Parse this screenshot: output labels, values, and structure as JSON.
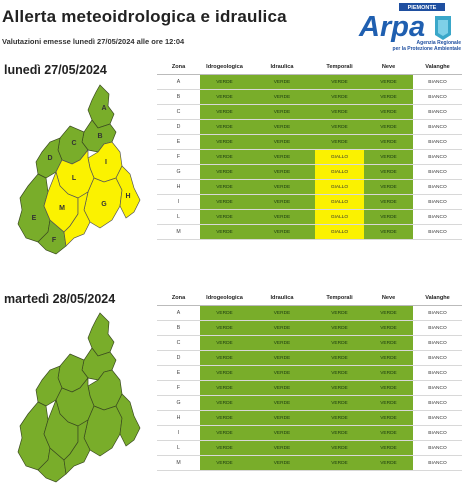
{
  "header": {
    "title": "Allerta meteoidrologica e idraulica",
    "subtitle": "Valutazioni emesse lunedì 27/05/2024 alle ore 12:04"
  },
  "logo": {
    "top_label": "PIEMONTE",
    "brand": "Arpa",
    "line1": "Agenzia Regionale",
    "line2": "per la Protezione Ambientale"
  },
  "columns": [
    "Zona",
    "Idrogeologica",
    "Idraulica",
    "Temporali",
    "Neve",
    "Valanghe"
  ],
  "colors": {
    "VERDE": "#79ad2a",
    "GIALLO": "#fbf200",
    "BIANCO": "#ffffff"
  },
  "days": [
    {
      "title": "lunedì 27/05/2024",
      "map_labels": [
        "A",
        "B",
        "C",
        "D",
        "E",
        "F",
        "G",
        "H",
        "I",
        "L",
        "M"
      ],
      "rows": [
        [
          "A",
          "VERDE",
          "VERDE",
          "VERDE",
          "VERDE",
          "BIANCO"
        ],
        [
          "B",
          "VERDE",
          "VERDE",
          "VERDE",
          "VERDE",
          "BIANCO"
        ],
        [
          "C",
          "VERDE",
          "VERDE",
          "VERDE",
          "VERDE",
          "BIANCO"
        ],
        [
          "D",
          "VERDE",
          "VERDE",
          "VERDE",
          "VERDE",
          "BIANCO"
        ],
        [
          "E",
          "VERDE",
          "VERDE",
          "VERDE",
          "VERDE",
          "BIANCO"
        ],
        [
          "F",
          "VERDE",
          "VERDE",
          "GIALLO",
          "VERDE",
          "BIANCO"
        ],
        [
          "G",
          "VERDE",
          "VERDE",
          "GIALLO",
          "VERDE",
          "BIANCO"
        ],
        [
          "H",
          "VERDE",
          "VERDE",
          "GIALLO",
          "VERDE",
          "BIANCO"
        ],
        [
          "I",
          "VERDE",
          "VERDE",
          "GIALLO",
          "VERDE",
          "BIANCO"
        ],
        [
          "L",
          "VERDE",
          "VERDE",
          "GIALLO",
          "VERDE",
          "BIANCO"
        ],
        [
          "M",
          "VERDE",
          "VERDE",
          "GIALLO",
          "VERDE",
          "BIANCO"
        ]
      ]
    },
    {
      "title": "martedì 28/05/2024",
      "map_labels": [],
      "rows": [
        [
          "A",
          "VERDE",
          "VERDE",
          "VERDE",
          "VERDE",
          "BIANCO"
        ],
        [
          "B",
          "VERDE",
          "VERDE",
          "VERDE",
          "VERDE",
          "BIANCO"
        ],
        [
          "C",
          "VERDE",
          "VERDE",
          "VERDE",
          "VERDE",
          "BIANCO"
        ],
        [
          "D",
          "VERDE",
          "VERDE",
          "VERDE",
          "VERDE",
          "BIANCO"
        ],
        [
          "E",
          "VERDE",
          "VERDE",
          "VERDE",
          "VERDE",
          "BIANCO"
        ],
        [
          "F",
          "VERDE",
          "VERDE",
          "VERDE",
          "VERDE",
          "BIANCO"
        ],
        [
          "G",
          "VERDE",
          "VERDE",
          "VERDE",
          "VERDE",
          "BIANCO"
        ],
        [
          "H",
          "VERDE",
          "VERDE",
          "VERDE",
          "VERDE",
          "BIANCO"
        ],
        [
          "I",
          "VERDE",
          "VERDE",
          "VERDE",
          "VERDE",
          "BIANCO"
        ],
        [
          "L",
          "VERDE",
          "VERDE",
          "VERDE",
          "VERDE",
          "BIANCO"
        ],
        [
          "M",
          "VERDE",
          "VERDE",
          "VERDE",
          "VERDE",
          "BIANCO"
        ]
      ]
    }
  ]
}
